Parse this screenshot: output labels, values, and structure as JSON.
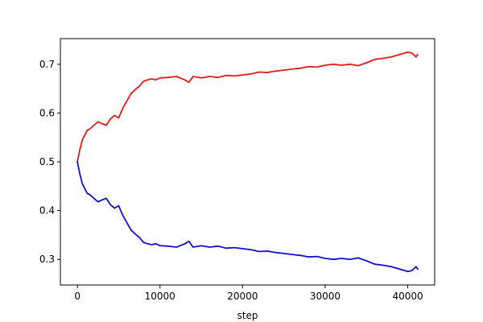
{
  "chart_data": {
    "type": "line",
    "title": "",
    "xlabel": "step",
    "ylabel": "",
    "xlim": [
      -2060,
      43260
    ],
    "ylim": [
      0.2475,
      0.7525
    ],
    "xticks": [
      0,
      10000,
      20000,
      30000,
      40000
    ],
    "xtick_labels": [
      "0",
      "10000",
      "20000",
      "30000",
      "40000"
    ],
    "yticks": [
      0.3,
      0.4,
      0.5,
      0.6,
      0.7
    ],
    "ytick_labels": [
      "0.3",
      "0.4",
      "0.5",
      "0.6",
      "0.7"
    ],
    "grid": false,
    "legend": "none",
    "series": [
      {
        "color": "#e31a1a",
        "x": [
          0,
          300,
          600,
          900,
          1200,
          1500,
          2000,
          2500,
          3000,
          3500,
          4000,
          4500,
          5000,
          5500,
          6000,
          6500,
          7000,
          7500,
          8000,
          8500,
          9000,
          9500,
          10000,
          11000,
          12000,
          13000,
          13500,
          14000,
          15000,
          16000,
          17000,
          18000,
          19000,
          20000,
          21000,
          22000,
          23000,
          24000,
          25000,
          26000,
          27000,
          28000,
          29000,
          30000,
          31000,
          32000,
          33000,
          34000,
          35000,
          36000,
          37000,
          38000,
          39000,
          40000,
          40500,
          41000,
          41200
        ],
        "values": [
          0.5,
          0.525,
          0.545,
          0.555,
          0.565,
          0.567,
          0.575,
          0.582,
          0.578,
          0.575,
          0.588,
          0.595,
          0.59,
          0.61,
          0.625,
          0.64,
          0.648,
          0.655,
          0.665,
          0.668,
          0.67,
          0.668,
          0.672,
          0.673,
          0.675,
          0.668,
          0.663,
          0.675,
          0.672,
          0.675,
          0.673,
          0.677,
          0.676,
          0.678,
          0.68,
          0.684,
          0.683,
          0.686,
          0.688,
          0.69,
          0.692,
          0.695,
          0.694,
          0.698,
          0.7,
          0.698,
          0.7,
          0.697,
          0.703,
          0.71,
          0.712,
          0.715,
          0.72,
          0.725,
          0.723,
          0.715,
          0.72
        ]
      },
      {
        "color": "#1010d0",
        "x": [
          0,
          300,
          600,
          900,
          1200,
          1500,
          2000,
          2500,
          3000,
          3500,
          4000,
          4500,
          5000,
          5500,
          6000,
          6500,
          7000,
          7500,
          8000,
          8500,
          9000,
          9500,
          10000,
          11000,
          12000,
          13000,
          13500,
          14000,
          15000,
          16000,
          17000,
          18000,
          19000,
          20000,
          21000,
          22000,
          23000,
          24000,
          25000,
          26000,
          27000,
          28000,
          29000,
          30000,
          31000,
          32000,
          33000,
          34000,
          35000,
          36000,
          37000,
          38000,
          39000,
          40000,
          40500,
          41000,
          41200
        ],
        "values": [
          0.5,
          0.475,
          0.455,
          0.445,
          0.435,
          0.433,
          0.425,
          0.418,
          0.422,
          0.425,
          0.412,
          0.405,
          0.41,
          0.39,
          0.375,
          0.36,
          0.352,
          0.345,
          0.335,
          0.332,
          0.33,
          0.332,
          0.328,
          0.327,
          0.325,
          0.332,
          0.337,
          0.325,
          0.328,
          0.325,
          0.327,
          0.323,
          0.324,
          0.322,
          0.32,
          0.316,
          0.317,
          0.314,
          0.312,
          0.31,
          0.308,
          0.305,
          0.306,
          0.302,
          0.3,
          0.302,
          0.3,
          0.303,
          0.297,
          0.29,
          0.288,
          0.285,
          0.28,
          0.275,
          0.277,
          0.285,
          0.28
        ]
      }
    ]
  }
}
